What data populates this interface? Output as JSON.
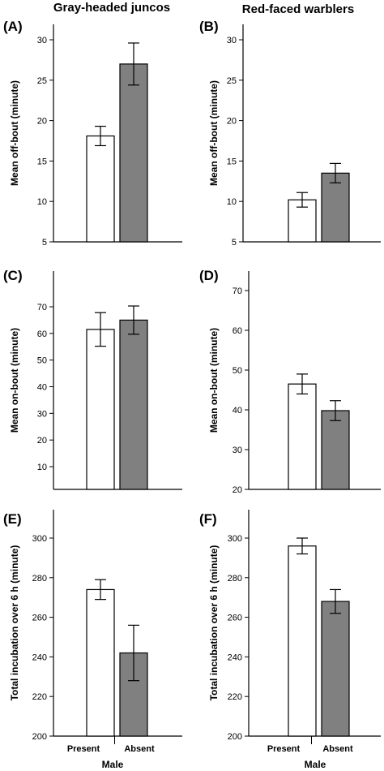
{
  "column_titles": [
    "Gray-headed juncos",
    "Red-faced warblers"
  ],
  "chart_data": [
    {
      "panel": "(A)",
      "type": "bar",
      "categories": [
        "Present",
        "Absent"
      ],
      "values": [
        18.1,
        27.0
      ],
      "error": [
        1.2,
        2.6
      ],
      "ylabel": "Mean off-bout (minute)",
      "ylim": [
        5,
        30
      ],
      "yticks": [
        5,
        10,
        15,
        20,
        25,
        30
      ],
      "colors": [
        "#ffffff",
        "#808080"
      ]
    },
    {
      "panel": "(B)",
      "type": "bar",
      "categories": [
        "Present",
        "Absent"
      ],
      "values": [
        10.2,
        13.5
      ],
      "error": [
        0.9,
        1.2
      ],
      "ylabel": "Mean off-bout (minute)",
      "ylim": [
        5,
        30
      ],
      "yticks": [
        5,
        10,
        15,
        20,
        25,
        30
      ],
      "colors": [
        "#ffffff",
        "#808080"
      ]
    },
    {
      "panel": "(C)",
      "type": "bar",
      "categories": [
        "Present",
        "Absent"
      ],
      "values": [
        61.5,
        65.0
      ],
      "error": [
        6.3,
        5.3
      ],
      "ylabel": "Mean on-bout (minute)",
      "ylim": [
        0,
        73
      ],
      "yticks": [
        10,
        20,
        30,
        40,
        50,
        60,
        70
      ],
      "colors": [
        "#ffffff",
        "#808080"
      ]
    },
    {
      "panel": "(D)",
      "type": "bar",
      "categories": [
        "Present",
        "Absent"
      ],
      "values": [
        46.5,
        39.8
      ],
      "error": [
        2.5,
        2.5
      ],
      "ylabel": "Mean on-bout (minute)",
      "ylim": [
        20,
        74
      ],
      "yticks": [
        20,
        30,
        40,
        50,
        60,
        70
      ],
      "colors": [
        "#ffffff",
        "#808080"
      ]
    },
    {
      "panel": "(E)",
      "type": "bar",
      "categories": [
        "Present",
        "Absent"
      ],
      "values": [
        274,
        242
      ],
      "error": [
        5,
        14
      ],
      "ylabel": "Total incubation over 6 h (minute)",
      "xlabel": "Male",
      "ylim": [
        200,
        310
      ],
      "yticks": [
        200,
        220,
        240,
        260,
        280,
        300
      ],
      "colors": [
        "#ffffff",
        "#808080"
      ]
    },
    {
      "panel": "(F)",
      "type": "bar",
      "categories": [
        "Present",
        "Absent"
      ],
      "values": [
        296,
        268
      ],
      "error": [
        4,
        6
      ],
      "ylabel": "Total incubation over 6 h (minute)",
      "xlabel": "Male",
      "ylim": [
        200,
        310
      ],
      "yticks": [
        200,
        220,
        240,
        260,
        280,
        300
      ],
      "colors": [
        "#ffffff",
        "#808080"
      ]
    }
  ]
}
